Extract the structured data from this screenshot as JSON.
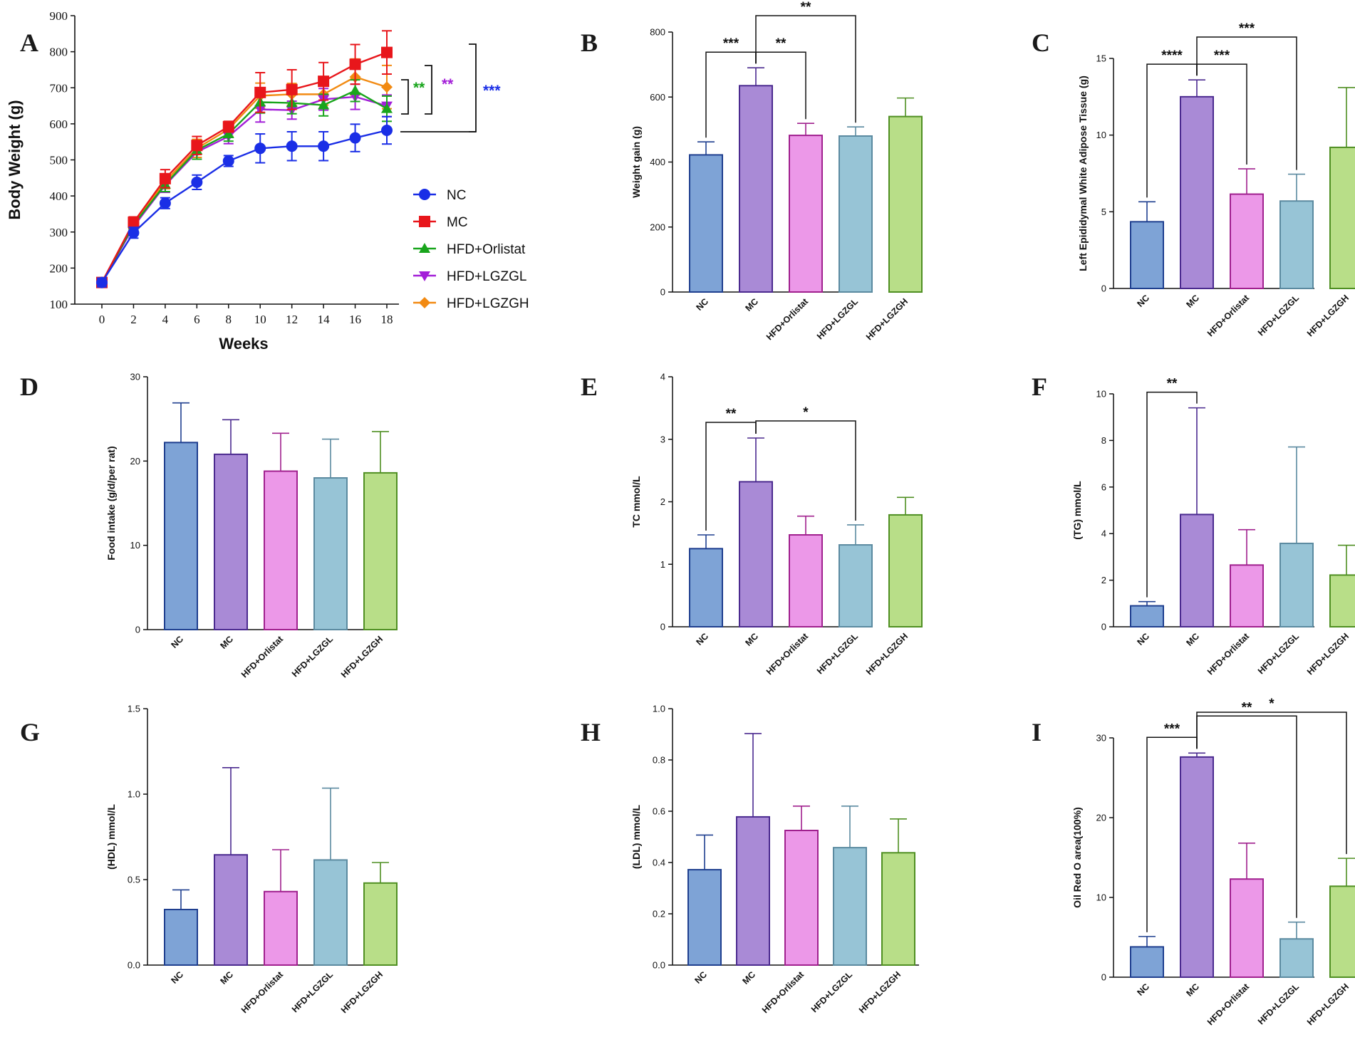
{
  "colors": {
    "NC": {
      "fill": "#7ea3d6",
      "stroke": "#1f3f8f"
    },
    "MC": {
      "fill": "#a98ad6",
      "stroke": "#4b2a8f"
    },
    "HFD+Orlistat": {
      "fill": "#ec98e8",
      "stroke": "#a0208e"
    },
    "HFD+LGZGL": {
      "fill": "#97c4d6",
      "stroke": "#5b8aa0"
    },
    "HFD+LGZGH": {
      "fill": "#b8de88",
      "stroke": "#4f8f22"
    },
    "lineA": {
      "NC": "#1a2ee6",
      "MC": "#e8161b",
      "HFD+Orlistat": "#19a51c",
      "HFD+LGZGL": "#a31fd8",
      "HFD+LGZGH": "#f28a12"
    }
  },
  "chart_data": [
    {
      "id": "A",
      "type": "line",
      "panel_label": "A",
      "xlabel": "Weeks",
      "ylabel": "Body Weight (g)",
      "x": [
        0,
        2,
        4,
        6,
        8,
        10,
        12,
        14,
        16,
        18
      ],
      "xticks": [
        "0",
        "2",
        "4",
        "6",
        "8",
        "10",
        "12",
        "14",
        "16",
        "18"
      ],
      "ylim": [
        100,
        900
      ],
      "yticks": [
        "100",
        "200",
        "300",
        "400",
        "500",
        "600",
        "700",
        "800",
        "900"
      ],
      "series": [
        {
          "name": "NC",
          "marker": "circle",
          "values": [
            160,
            298,
            380,
            438,
            497,
            532,
            538,
            538,
            561,
            582
          ],
          "err": [
            12,
            15,
            15,
            20,
            15,
            40,
            40,
            40,
            38,
            38
          ]
        },
        {
          "name": "MC",
          "marker": "square",
          "values": [
            160,
            327,
            448,
            540,
            592,
            687,
            695,
            718,
            765,
            798
          ],
          "err": [
            12,
            15,
            25,
            25,
            15,
            55,
            55,
            52,
            55,
            60
          ]
        },
        {
          "name": "HFD+Orlistat",
          "marker": "triangle-up",
          "values": [
            160,
            320,
            432,
            527,
            572,
            660,
            658,
            652,
            692,
            642
          ],
          "err": [
            12,
            15,
            20,
            25,
            20,
            30,
            30,
            30,
            30,
            35
          ]
        },
        {
          "name": "HFD+LGZGL",
          "marker": "triangle-down",
          "values": [
            160,
            315,
            430,
            522,
            565,
            640,
            638,
            668,
            675,
            650
          ],
          "err": [
            12,
            15,
            20,
            20,
            20,
            35,
            25,
            30,
            35,
            30
          ]
        },
        {
          "name": "HFD+LGZGH",
          "marker": "diamond",
          "values": [
            160,
            322,
            440,
            532,
            585,
            678,
            682,
            682,
            730,
            702
          ],
          "err": [
            12,
            15,
            20,
            25,
            20,
            35,
            30,
            30,
            50,
            60
          ]
        }
      ],
      "significance": [
        {
          "label": "**",
          "color": "#19a51c"
        },
        {
          "label": "**",
          "color": "#a31fd8"
        },
        {
          "label": "***",
          "color": "#1a2ee6"
        }
      ]
    },
    {
      "id": "B",
      "type": "bar",
      "panel_label": "B",
      "ylabel": "Weight gain (g)",
      "categories": [
        "NC",
        "MC",
        "HFD+Orlistat",
        "HFD+LGZGL",
        "HFD+LGZGH"
      ],
      "values": [
        422,
        635,
        482,
        480,
        540
      ],
      "err": [
        40,
        55,
        37,
        28,
        57
      ],
      "ylim": [
        0,
        800
      ],
      "yticks": [
        "0",
        "200",
        "400",
        "600",
        "800"
      ],
      "significance": [
        {
          "from": 0,
          "to": 1,
          "label": "***"
        },
        {
          "from": 1,
          "to": 2,
          "label": "**"
        },
        {
          "from": 1,
          "to": 3,
          "label": "**"
        }
      ]
    },
    {
      "id": "C",
      "type": "bar",
      "panel_label": "C",
      "ylabel": "Left Epididymal White Adipose Tissue (g)",
      "categories": [
        "NC",
        "MC",
        "HFD+Orlistat",
        "HFD+LGZGL",
        "HFD+LGZGH"
      ],
      "values": [
        4.35,
        12.5,
        6.15,
        5.7,
        9.2
      ],
      "err": [
        1.3,
        1.1,
        1.65,
        1.75,
        3.9
      ],
      "ylim": [
        0,
        15
      ],
      "yticks": [
        "0",
        "5",
        "10",
        "15"
      ],
      "significance": [
        {
          "from": 0,
          "to": 1,
          "label": "****"
        },
        {
          "from": 1,
          "to": 2,
          "label": "***"
        },
        {
          "from": 1,
          "to": 3,
          "label": "***"
        }
      ]
    },
    {
      "id": "D",
      "type": "bar",
      "panel_label": "D",
      "ylabel": "Food intake (g/d/per rat)",
      "categories": [
        "NC",
        "MC",
        "HFD+Orlistat",
        "HFD+LGZGL",
        "HFD+LGZGH"
      ],
      "values": [
        22.2,
        20.8,
        18.8,
        18.0,
        18.6
      ],
      "err": [
        4.7,
        4.1,
        4.5,
        4.6,
        4.9
      ],
      "ylim": [
        0,
        30
      ],
      "yticks": [
        "0",
        "10",
        "20",
        "30"
      ],
      "significance": []
    },
    {
      "id": "E",
      "type": "bar",
      "panel_label": "E",
      "ylabel": "TC mmol/L",
      "categories": [
        "NC",
        "MC",
        "HFD+Orlistat",
        "HFD+LGZGL",
        "HFD+LGZGH"
      ],
      "values": [
        1.25,
        2.32,
        1.47,
        1.31,
        1.79
      ],
      "err": [
        0.22,
        0.7,
        0.3,
        0.32,
        0.28
      ],
      "ylim": [
        0,
        4
      ],
      "yticks": [
        "0",
        "1",
        "2",
        "3",
        "4"
      ],
      "significance": [
        {
          "from": 0,
          "to": 1,
          "label": "**"
        },
        {
          "from": 1,
          "to": 3,
          "label": "*"
        }
      ]
    },
    {
      "id": "F",
      "type": "bar",
      "panel_label": "F",
      "ylabel": "(TG) mmol/L",
      "categories": [
        "NC",
        "MC",
        "HFD+Orlistat",
        "HFD+LGZGL",
        "HFD+LGZGH"
      ],
      "values": [
        0.9,
        4.82,
        2.65,
        3.58,
        2.22
      ],
      "err": [
        0.18,
        4.58,
        1.52,
        4.14,
        1.28
      ],
      "ylim": [
        0,
        10
      ],
      "yticks": [
        "0",
        "2",
        "4",
        "6",
        "8",
        "10"
      ],
      "significance": [
        {
          "from": 0,
          "to": 1,
          "label": "**"
        }
      ]
    },
    {
      "id": "G",
      "type": "bar",
      "panel_label": "G",
      "ylabel": "(HDL) mmol/L",
      "categories": [
        "NC",
        "MC",
        "HFD+Orlistat",
        "HFD+LGZGL",
        "HFD+LGZGH"
      ],
      "values": [
        0.325,
        0.645,
        0.43,
        0.615,
        0.48
      ],
      "err": [
        0.115,
        0.51,
        0.245,
        0.42,
        0.12
      ],
      "ylim": [
        0,
        1.5
      ],
      "yticks": [
        "0.0",
        "0.5",
        "1.0",
        "1.5"
      ],
      "significance": []
    },
    {
      "id": "H",
      "type": "bar",
      "panel_label": "H",
      "ylabel": "(LDL) mmol/L",
      "categories": [
        "NC",
        "MC",
        "HFD+Orlistat",
        "HFD+LGZGL",
        "HFD+LGZGH"
      ],
      "values": [
        0.372,
        0.578,
        0.525,
        0.458,
        0.438
      ],
      "err": [
        0.135,
        0.325,
        0.095,
        0.162,
        0.132
      ],
      "ylim": [
        0,
        1.0
      ],
      "yticks": [
        "0.0",
        "0.2",
        "0.4",
        "0.6",
        "0.8",
        "1.0"
      ],
      "significance": []
    },
    {
      "id": "I",
      "type": "bar",
      "panel_label": "I",
      "ylabel": "Oil Red O area(100%)",
      "categories": [
        "NC",
        "MC",
        "HFD+Orlistat",
        "HFD+LGZGL",
        "HFD+LGZGH"
      ],
      "values": [
        3.8,
        27.6,
        12.3,
        4.8,
        11.4
      ],
      "err": [
        1.3,
        0.5,
        4.5,
        2.1,
        3.5
      ],
      "ylim": [
        0,
        30
      ],
      "yticks": [
        "0",
        "10",
        "20",
        "30"
      ],
      "significance": [
        {
          "from": 0,
          "to": 1,
          "label": "***"
        },
        {
          "from": 1,
          "to": 3,
          "label": "**"
        },
        {
          "from": 1,
          "to": 4,
          "label": "*"
        }
      ]
    }
  ]
}
